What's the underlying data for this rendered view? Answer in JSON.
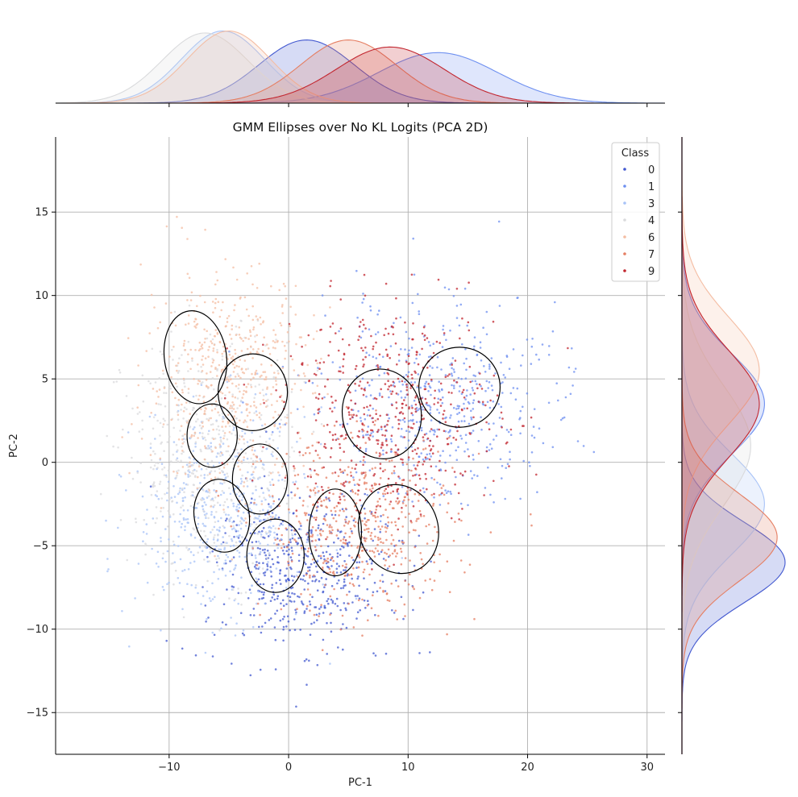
{
  "chart_data": {
    "type": "scatter",
    "title": "GMM Ellipses over No KL Logits (PCA 2D)",
    "xlabel": "PC-1",
    "ylabel": "PC-2",
    "xlim": [
      -19.5,
      31.5
    ],
    "ylim": [
      -17.5,
      19.5
    ],
    "xticks": [
      -10,
      0,
      10,
      20,
      30
    ],
    "yticks": [
      -15,
      -10,
      -5,
      0,
      5,
      10,
      15
    ],
    "grid": true,
    "legend": {
      "title": "Class",
      "position": "top-right",
      "entries": [
        "0",
        "1",
        "3",
        "4",
        "6",
        "7",
        "9"
      ]
    },
    "colors": {
      "0": "#4359d0",
      "1": "#6d8ff0",
      "3": "#a8c3f7",
      "4": "#d9dadc",
      "6": "#f4bda3",
      "7": "#e57e62",
      "9": "#c2262f"
    },
    "series": [
      {
        "name": "0",
        "center": [
          1.5,
          -6.5
        ],
        "spread": [
          4.0,
          2.4
        ],
        "kde_x_peak": 1.5,
        "kde_y_peak": -6.0
      },
      {
        "name": "1",
        "center": [
          12.5,
          3.5
        ],
        "spread": [
          5.0,
          3.0
        ],
        "kde_x_peak": 12.5,
        "kde_y_peak": 3.5
      },
      {
        "name": "3",
        "center": [
          -5.5,
          -3.0
        ],
        "spread": [
          3.5,
          3.0
        ],
        "kde_x_peak": -5.5,
        "kde_y_peak": -2.5
      },
      {
        "name": "4",
        "center": [
          -6.5,
          0.5
        ],
        "spread": [
          3.6,
          3.6
        ],
        "kde_x_peak": -7.0,
        "kde_y_peak": 1.0
      },
      {
        "name": "6",
        "center": [
          -5.0,
          5.0
        ],
        "spread": [
          3.5,
          3.2
        ],
        "kde_x_peak": -5.0,
        "kde_y_peak": 5.5
      },
      {
        "name": "7",
        "center": [
          6.0,
          -4.0
        ],
        "spread": [
          4.0,
          2.6
        ],
        "kde_x_peak": 5.0,
        "kde_y_peak": -4.5
      },
      {
        "name": "9",
        "center": [
          8.5,
          3.0
        ],
        "spread": [
          4.5,
          3.2
        ],
        "kde_x_peak": 8.5,
        "kde_y_peak": 3.5
      }
    ],
    "gmm_ellipses": [
      {
        "cx": -7.8,
        "cy": 6.3,
        "rx": 2.6,
        "ry": 2.8,
        "angle": -8
      },
      {
        "cx": -3.0,
        "cy": 4.2,
        "rx": 2.9,
        "ry": 2.3,
        "angle": 0
      },
      {
        "cx": -6.4,
        "cy": 1.6,
        "rx": 2.1,
        "ry": 1.9,
        "angle": 0
      },
      {
        "cx": -2.4,
        "cy": -1.0,
        "rx": 2.3,
        "ry": 2.1,
        "angle": 0
      },
      {
        "cx": -5.6,
        "cy": -3.2,
        "rx": 2.3,
        "ry": 2.2,
        "angle": -10
      },
      {
        "cx": -1.1,
        "cy": -5.6,
        "rx": 2.4,
        "ry": 2.2,
        "angle": 0
      },
      {
        "cx": 3.9,
        "cy": -4.2,
        "rx": 2.2,
        "ry": 2.6,
        "angle": 0
      },
      {
        "cx": 7.8,
        "cy": 2.9,
        "rx": 3.3,
        "ry": 2.7,
        "angle": -10
      },
      {
        "cx": 9.2,
        "cy": -4.0,
        "rx": 3.3,
        "ry": 2.7,
        "angle": -20
      },
      {
        "cx": 14.3,
        "cy": 4.5,
        "rx": 3.4,
        "ry": 2.4,
        "angle": 0
      }
    ]
  }
}
